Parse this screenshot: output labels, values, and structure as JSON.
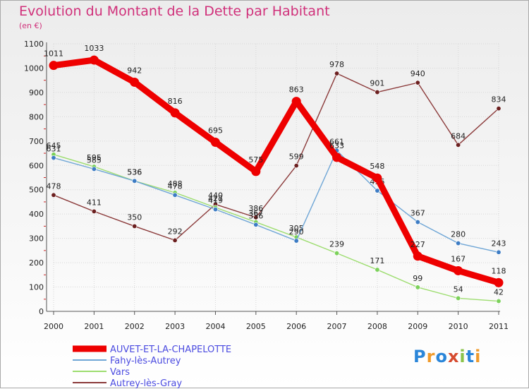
{
  "title": "Evolution du Montant de la Dette par Habitant",
  "unit": "(en €)",
  "logo": {
    "text": "Proxiti",
    "colors": [
      "#2b86d9",
      "#f09a2a",
      "#2b86d9",
      "#d64b2f",
      "#8bc34a",
      "#2b86d9",
      "#f09a2a"
    ]
  },
  "chart_data": {
    "type": "line",
    "x": [
      "2000",
      "2001",
      "2002",
      "2003",
      "2004",
      "2005",
      "2006",
      "2007",
      "2008",
      "2009",
      "2010",
      "2011"
    ],
    "yticks": [
      "0",
      "100",
      "200",
      "300",
      "400",
      "500",
      "600",
      "700",
      "800",
      "900",
      "1000",
      "1100"
    ],
    "ylim": [
      0,
      1100
    ],
    "grid": true,
    "legend_position": "bottom-left",
    "series": [
      {
        "name": "AUVET-ET-LA-CHAPELOTTE",
        "color": "#ee0000",
        "width": 9,
        "marker_color": "#ee0000",
        "values": [
          1011,
          1033,
          942,
          816,
          695,
          575,
          863,
          633,
          548,
          227,
          167,
          118
        ]
      },
      {
        "name": "Fahy-lès-Autrey",
        "color": "#6fa6d6",
        "width": 1.4,
        "marker_color": "#3d7cc4",
        "values": [
          631,
          585,
          536,
          478,
          419,
          356,
          290,
          661,
          496,
          367,
          280,
          243
        ]
      },
      {
        "name": "Vars",
        "color": "#9ddd6f",
        "width": 1.4,
        "marker_color": "#7bd15a",
        "values": [
          645,
          595,
          536,
          488,
          427,
          367,
          305,
          239,
          171,
          99,
          54,
          42
        ]
      },
      {
        "name": "Autrey-lès-Gray",
        "color": "#8b3a3a",
        "width": 1.4,
        "marker_color": "#6b1f1f",
        "values": [
          478,
          411,
          350,
          292,
          440,
          386,
          599,
          978,
          901,
          940,
          684,
          834
        ]
      }
    ]
  }
}
